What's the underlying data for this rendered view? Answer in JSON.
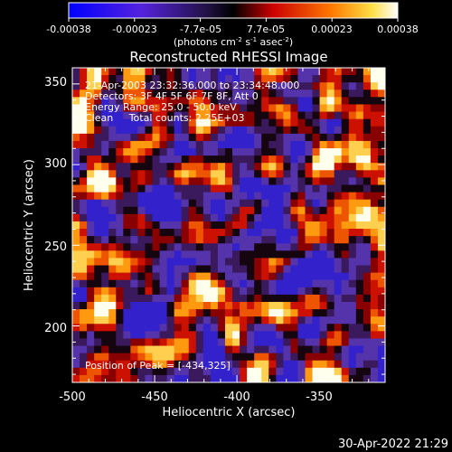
{
  "chart_data": {
    "type": "heatmap",
    "title": "Reconstructed RHESSI Image",
    "xlabel": "Heliocentric X (arcsec)",
    "ylabel": "Heliocentric Y (arcsec)",
    "x_range": [
      -500,
      -310
    ],
    "y_range": [
      165,
      360
    ],
    "x_ticks": [
      "-500",
      "-450",
      "-400",
      "-350"
    ],
    "y_ticks": [
      "200",
      "250",
      "300",
      "350"
    ],
    "colorbar": {
      "ticks": [
        "-0.00038",
        "-0.00023",
        "-7.7e-05",
        "7.7e-05",
        "0.00023",
        "0.00038"
      ],
      "units": "(photons cm",
      "units_sup1": "-2",
      "units_mid": " s",
      "units_sup2": "-1",
      "units_end": " asec",
      "units_sup3": "-2",
      "units_close": ")",
      "range": [
        -0.00038,
        0.00038
      ],
      "colormap": [
        "#0000ff",
        "#6633cc",
        "#000000",
        "#cc0000",
        "#ff7a00",
        "#ffffff"
      ]
    },
    "annotations": [
      "21-Apr-2003 23:32:36.000 to 23:34:48.000",
      "Detectors: 3F 4F 5F 6F 7F 8F, Att 0",
      "Energy Range: 25.0 - 50.0 keV",
      "Clean     Total counts: 2.25E+03"
    ],
    "peak_label": "Position of Peak = [-434,325]",
    "peak": [
      -434,
      325
    ],
    "grid": false
  },
  "timestamp": "30-Apr-2022 21:29"
}
